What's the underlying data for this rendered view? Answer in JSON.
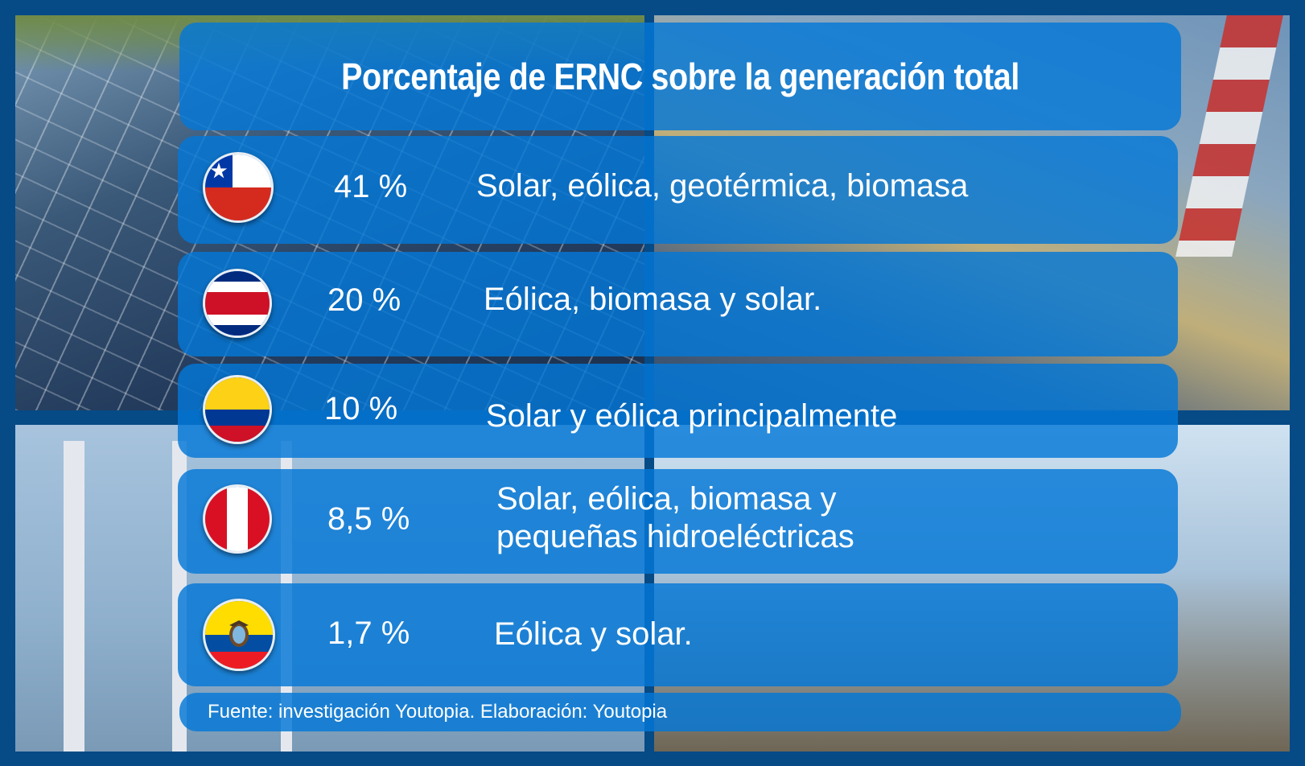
{
  "title": "Porcentaje de ERNC sobre la generación total",
  "rows": [
    {
      "flag_icon": "chile-flag-icon",
      "percent": "41 %",
      "description": "Solar, eólica, geotérmica, biomasa"
    },
    {
      "flag_icon": "costa-rica-flag-icon",
      "percent": "20 %",
      "description": "Eólica, biomasa y solar."
    },
    {
      "flag_icon": "colombia-flag-icon",
      "percent": "10 %",
      "description": "Solar y eólica principalmente"
    },
    {
      "flag_icon": "peru-flag-icon",
      "percent": "8,5 %",
      "description_line1": "Solar, eólica, biomasa y",
      "description_line2": "pequeñas hidroeléctricas"
    },
    {
      "flag_icon": "ecuador-flag-icon",
      "percent": "1,7 %",
      "description": "Eólica y solar."
    }
  ],
  "source": "Fuente: investigación Youtopia. Elaboración: Youtopia",
  "colors": {
    "frame": "#064a86",
    "panel": "#0478d7",
    "text": "#ffffff"
  }
}
